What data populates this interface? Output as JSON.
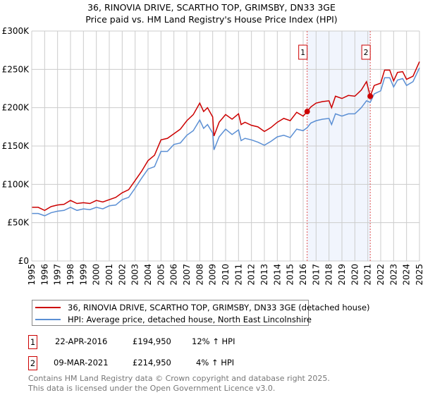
{
  "title": "36, RINOVIA DRIVE, SCARTHO TOP, GRIMSBY, DN33 3GE",
  "subtitle": "Price paid vs. HM Land Registry's House Price Index (HPI)",
  "chart_data": {
    "type": "line",
    "title": "36, RINOVIA DRIVE, SCARTHO TOP, GRIMSBY, DN33 3GE",
    "subtitle": "Price paid vs. HM Land Registry's House Price Index (HPI)",
    "xlim": [
      1995,
      2025
    ],
    "ylim": [
      0,
      300000
    ],
    "grid": true,
    "y_ticks": [
      0,
      50000,
      100000,
      150000,
      200000,
      250000,
      300000
    ],
    "y_tick_labels": [
      "£0",
      "£50K",
      "£100K",
      "£150K",
      "£200K",
      "£250K",
      "£300K"
    ],
    "x_ticks": [
      "1995",
      "1996",
      "1997",
      "1998",
      "1999",
      "2000",
      "2001",
      "2002",
      "2003",
      "2004",
      "2005",
      "2006",
      "2007",
      "2008",
      "2009",
      "2010",
      "2011",
      "2012",
      "2013",
      "2014",
      "2015",
      "2016",
      "2017",
      "2018",
      "2019",
      "2020",
      "2021",
      "2022",
      "2023",
      "2024",
      "2025"
    ],
    "series": [
      {
        "name": "36, RINOVIA DRIVE, SCARTHO TOP, GRIMSBY, DN33 3GE (detached house)",
        "color": "#cc0000",
        "x": [
          1995,
          1995.5,
          1996,
          1996.5,
          1997,
          1997.5,
          1998,
          1998.5,
          1999,
          1999.5,
          2000,
          2000.5,
          2001,
          2001.5,
          2002,
          2002.5,
          2003,
          2003.5,
          2004,
          2004.5,
          2005,
          2005.5,
          2006,
          2006.5,
          2007,
          2007.5,
          2008,
          2008.3,
          2008.6,
          2009,
          2009.1,
          2009.5,
          2010,
          2010.5,
          2011,
          2011.2,
          2011.5,
          2012,
          2012.5,
          2013,
          2013.5,
          2014,
          2014.5,
          2015,
          2015.5,
          2016,
          2016.31,
          2016.6,
          2017,
          2017.5,
          2018,
          2018.2,
          2018.5,
          2019,
          2019.5,
          2020,
          2020.5,
          2020.9,
          2021.19,
          2021.5,
          2022,
          2022.3,
          2022.7,
          2023,
          2023.3,
          2023.7,
          2024,
          2024.5,
          2025
        ],
        "y": [
          70000,
          70000,
          66000,
          71000,
          73000,
          74000,
          79000,
          75000,
          76000,
          75000,
          79000,
          77000,
          80000,
          83000,
          89000,
          93000,
          105000,
          117000,
          131000,
          138000,
          158000,
          160000,
          166000,
          172000,
          183000,
          191000,
          206000,
          195000,
          200000,
          188000,
          163000,
          181000,
          191000,
          185000,
          192000,
          178000,
          181000,
          177000,
          175000,
          169000,
          174000,
          181000,
          186000,
          183000,
          194000,
          189000,
          194950,
          201000,
          206000,
          208000,
          209000,
          200000,
          215000,
          212000,
          216000,
          215000,
          223000,
          234000,
          214950,
          229000,
          232000,
          249000,
          249000,
          235000,
          246000,
          247000,
          237000,
          241000,
          260000
        ]
      },
      {
        "name": "HPI: Average price, detached house, North East Lincolnshire",
        "color": "#5b8fd4",
        "x": [
          1995,
          1995.5,
          1996,
          1996.5,
          1997,
          1997.5,
          1998,
          1998.5,
          1999,
          1999.5,
          2000,
          2000.5,
          2001,
          2001.5,
          2002,
          2002.5,
          2003,
          2003.5,
          2004,
          2004.5,
          2005,
          2005.5,
          2006,
          2006.5,
          2007,
          2007.5,
          2008,
          2008.3,
          2008.6,
          2009,
          2009.1,
          2009.5,
          2010,
          2010.5,
          2011,
          2011.2,
          2011.5,
          2012,
          2012.5,
          2013,
          2013.5,
          2014,
          2014.5,
          2015,
          2015.5,
          2016,
          2016.31,
          2016.6,
          2017,
          2017.5,
          2018,
          2018.2,
          2018.5,
          2019,
          2019.5,
          2020,
          2020.5,
          2020.9,
          2021.19,
          2021.5,
          2022,
          2022.3,
          2022.7,
          2023,
          2023.3,
          2023.7,
          2024,
          2024.5,
          2025
        ],
        "y": [
          62000,
          62000,
          59000,
          63000,
          65000,
          66000,
          70000,
          66000,
          68000,
          67000,
          70000,
          68000,
          72000,
          73000,
          80000,
          83000,
          95000,
          108000,
          120000,
          123000,
          143000,
          143000,
          152000,
          154000,
          164000,
          170000,
          184000,
          173000,
          178000,
          167000,
          145000,
          162000,
          172000,
          165000,
          171000,
          157000,
          160000,
          158000,
          155000,
          151000,
          156000,
          162000,
          164000,
          161000,
          172000,
          170000,
          174000,
          180000,
          183000,
          185000,
          186000,
          178000,
          192000,
          189000,
          192000,
          192000,
          200000,
          209000,
          207000,
          218000,
          222000,
          239000,
          239000,
          227000,
          236000,
          238000,
          229000,
          234000,
          252000
        ]
      }
    ],
    "annotations": [
      {
        "label": "1",
        "x": 2016.31,
        "y": 194950
      },
      {
        "label": "2",
        "x": 2021.19,
        "y": 214950
      }
    ],
    "legend_position": "below"
  },
  "legend": [
    {
      "label": "36, RINOVIA DRIVE, SCARTHO TOP, GRIMSBY, DN33 3GE (detached house)",
      "color": "#cc0000"
    },
    {
      "label": "HPI: Average price, detached house, North East Lincolnshire",
      "color": "#5b8fd4"
    }
  ],
  "transactions": [
    {
      "num": "1",
      "date": "22-APR-2016",
      "price": "£194,950",
      "hpi": "12% ↑ HPI"
    },
    {
      "num": "2",
      "date": "09-MAR-2021",
      "price": "£214,950",
      "hpi": "4% ↑ HPI"
    }
  ],
  "footer": {
    "line1": "Contains HM Land Registry data © Crown copyright and database right 2025.",
    "line2": "This data is licensed under the Open Government Licence v3.0."
  }
}
